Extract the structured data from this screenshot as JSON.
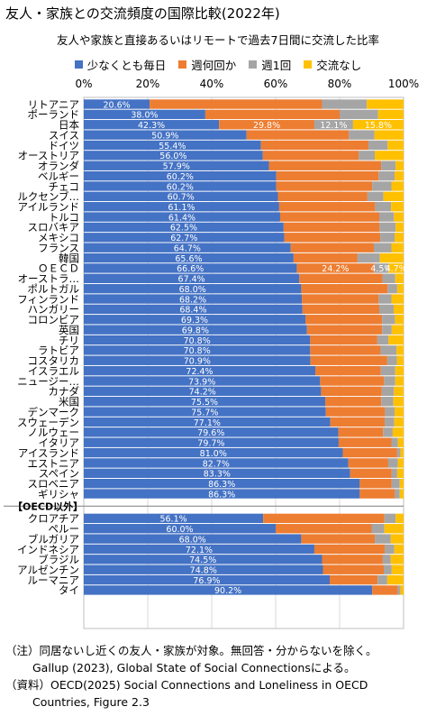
{
  "header": {
    "title": "友人・家族との交流頻度の国際比較(2022年)",
    "subtitle": "友人や家族と直接あるいはリモートで過去7日間に交流した比率"
  },
  "colors": {
    "daily": "#4472c4",
    "weekly": "#ed7d31",
    "once": "#a5a5a5",
    "none": "#ffc000",
    "gridline": "#d9d9d9"
  },
  "chart_data": {
    "type": "bar",
    "orientation": "horizontal",
    "stacked": true,
    "title": "友人・家族との交流頻度の国際比較(2022年)",
    "subtitle": "友人や家族と直接あるいはリモートで過去7日間に交流した比率",
    "xlim": [
      0,
      100
    ],
    "x_ticks": [
      "0%",
      "20%",
      "40%",
      "60%",
      "80%",
      "100%"
    ],
    "grid": true,
    "legend_position": "top",
    "series": [
      {
        "key": "daily",
        "name": "少なくとも毎日"
      },
      {
        "key": "weekly",
        "name": "週何回か"
      },
      {
        "key": "once",
        "name": "週1回"
      },
      {
        "key": "none",
        "name": "交流なし"
      }
    ],
    "section_label": "【OECD以外】",
    "rows": [
      {
        "label": "リトアニア",
        "values": [
          20.6,
          53.9,
          14.0,
          11.5
        ],
        "labels": [
          "20.6%"
        ]
      },
      {
        "label": "ポーランド",
        "values": [
          38.0,
          42.0,
          12.0,
          8.0
        ],
        "labels": [
          "38.0%"
        ]
      },
      {
        "label": "日本",
        "values": [
          42.3,
          29.8,
          12.1,
          15.8
        ],
        "labels": [
          "42.3%",
          "29.8%",
          "12.1%",
          "15.8%"
        ]
      },
      {
        "label": "スイス",
        "values": [
          50.9,
          32.0,
          8.0,
          9.1
        ],
        "labels": [
          "50.9%"
        ]
      },
      {
        "label": "ドイツ",
        "values": [
          55.4,
          33.6,
          6.0,
          5.0
        ],
        "labels": [
          "55.4%"
        ]
      },
      {
        "label": "オーストリア",
        "values": [
          56.0,
          30.0,
          5.0,
          9.0
        ],
        "labels": [
          "56.0%"
        ]
      },
      {
        "label": "オランダ",
        "values": [
          57.9,
          35.1,
          4.5,
          2.5
        ],
        "labels": [
          "57.9%"
        ]
      },
      {
        "label": "ベルギー",
        "values": [
          60.2,
          32.0,
          5.0,
          2.8
        ],
        "labels": [
          "60.2%"
        ]
      },
      {
        "label": "チェコ",
        "values": [
          60.2,
          30.0,
          6.0,
          3.8
        ],
        "labels": [
          "60.2%"
        ]
      },
      {
        "label": "ルクセンブ…",
        "values": [
          60.7,
          28.0,
          5.0,
          6.3
        ],
        "labels": [
          "60.7%"
        ]
      },
      {
        "label": "アイルランド",
        "values": [
          61.1,
          30.0,
          5.0,
          3.9
        ],
        "labels": [
          "61.1%"
        ]
      },
      {
        "label": "トルコ",
        "values": [
          61.4,
          31.0,
          4.6,
          3.0
        ],
        "labels": [
          "61.4%"
        ]
      },
      {
        "label": "スロバキア",
        "values": [
          62.5,
          30.0,
          5.0,
          2.5
        ],
        "labels": [
          "62.5%"
        ]
      },
      {
        "label": "メキシコ",
        "values": [
          62.7,
          30.0,
          4.5,
          2.8
        ],
        "labels": [
          "62.7%"
        ]
      },
      {
        "label": "フランス",
        "values": [
          64.7,
          26.0,
          5.5,
          3.8
        ],
        "labels": [
          "64.7%"
        ]
      },
      {
        "label": "韓国",
        "values": [
          65.6,
          20.0,
          7.0,
          7.4
        ],
        "labels": [
          "65.6%"
        ]
      },
      {
        "label": "ＯＥＣＤ",
        "values": [
          66.6,
          24.2,
          4.5,
          4.7
        ],
        "labels": [
          "66.6%",
          "24.2%",
          "4.5%",
          "4.7%"
        ]
      },
      {
        "label": "オーストラ…",
        "values": [
          67.4,
          26.0,
          4.0,
          2.6
        ],
        "labels": [
          "67.4%"
        ]
      },
      {
        "label": "ポルトガル",
        "values": [
          68.0,
          27.0,
          3.0,
          2.0
        ],
        "labels": [
          "68.0%"
        ]
      },
      {
        "label": "フィンランド",
        "values": [
          68.2,
          24.0,
          4.0,
          3.8
        ],
        "labels": [
          "68.2%"
        ]
      },
      {
        "label": "ハンガリー",
        "values": [
          68.4,
          24.0,
          4.5,
          3.1
        ],
        "labels": [
          "68.4%"
        ]
      },
      {
        "label": "コロンビア",
        "values": [
          69.3,
          24.0,
          4.0,
          2.7
        ],
        "labels": [
          "69.3%"
        ]
      },
      {
        "label": "英国",
        "values": [
          69.8,
          23.5,
          3.0,
          3.7
        ],
        "labels": [
          "69.8%"
        ]
      },
      {
        "label": "チリ",
        "values": [
          70.8,
          21.0,
          3.5,
          4.7
        ],
        "labels": [
          "70.8%"
        ]
      },
      {
        "label": "ラトビア",
        "values": [
          70.8,
          22.0,
          5.0,
          2.2
        ],
        "labels": [
          "70.8%"
        ]
      },
      {
        "label": "コスタリカ",
        "values": [
          70.9,
          24.0,
          3.0,
          2.1
        ],
        "labels": [
          "70.9%"
        ]
      },
      {
        "label": "イスラエル",
        "values": [
          72.4,
          20.5,
          4.5,
          2.6
        ],
        "labels": [
          "72.4%"
        ]
      },
      {
        "label": "ニュージー…",
        "values": [
          73.9,
          20.0,
          3.5,
          2.6
        ],
        "labels": [
          "73.9%"
        ]
      },
      {
        "label": "カナダ",
        "values": [
          74.2,
          19.0,
          3.8,
          3.0
        ],
        "labels": [
          "74.2%"
        ]
      },
      {
        "label": "米国",
        "values": [
          75.5,
          17.5,
          3.8,
          3.2
        ],
        "labels": [
          "75.5%"
        ]
      },
      {
        "label": "デンマーク",
        "values": [
          75.7,
          18.5,
          3.0,
          2.8
        ],
        "labels": [
          "75.7%"
        ]
      },
      {
        "label": "スウェーデン",
        "values": [
          77.1,
          17.0,
          3.0,
          2.9
        ],
        "labels": [
          "77.1%"
        ]
      },
      {
        "label": "ノルウェー",
        "values": [
          79.6,
          14.0,
          3.0,
          3.4
        ],
        "labels": [
          "79.6%"
        ]
      },
      {
        "label": "イタリア",
        "values": [
          79.7,
          16.5,
          2.0,
          1.8
        ],
        "labels": [
          "79.7%"
        ]
      },
      {
        "label": "アイスランド",
        "values": [
          81.0,
          17.0,
          1.0,
          1.0
        ],
        "labels": [
          "81.0%"
        ]
      },
      {
        "label": "エストニア",
        "values": [
          82.7,
          12.5,
          3.0,
          1.8
        ],
        "labels": [
          "82.7%"
        ]
      },
      {
        "label": "スペイン",
        "values": [
          83.3,
          13.0,
          1.7,
          2.0
        ],
        "labels": [
          "83.3%"
        ]
      },
      {
        "label": "スロベニア",
        "values": [
          86.3,
          10.0,
          2.5,
          1.2
        ],
        "labels": [
          "86.3%"
        ]
      },
      {
        "label": "ギリシャ",
        "values": [
          86.3,
          11.0,
          1.5,
          1.2
        ],
        "labels": [
          "86.3%"
        ]
      },
      {
        "label": "クロアチア",
        "values": [
          56.1,
          37.9,
          3.5,
          2.5
        ],
        "labels": [
          "56.1%"
        ],
        "group": "non_oecd"
      },
      {
        "label": "ペルー",
        "values": [
          60.0,
          30.0,
          4.0,
          6.0
        ],
        "labels": [
          "60.0%"
        ],
        "group": "non_oecd"
      },
      {
        "label": "ブルガリア",
        "values": [
          68.0,
          23.0,
          5.0,
          4.0
        ],
        "labels": [
          "68.0%"
        ],
        "group": "non_oecd"
      },
      {
        "label": "インドネシア",
        "values": [
          72.1,
          22.0,
          3.0,
          2.9
        ],
        "labels": [
          "72.1%"
        ],
        "group": "non_oecd"
      },
      {
        "label": "ブラジル",
        "values": [
          74.5,
          19.0,
          2.5,
          4.0
        ],
        "labels": [
          "74.5%"
        ],
        "group": "non_oecd"
      },
      {
        "label": "アルゼンチン",
        "values": [
          74.8,
          19.0,
          2.5,
          3.7
        ],
        "labels": [
          "74.8%"
        ],
        "group": "non_oecd"
      },
      {
        "label": "ルーマニア",
        "values": [
          76.9,
          15.0,
          3.0,
          5.1
        ],
        "labels": [
          "76.9%"
        ],
        "group": "non_oecd"
      },
      {
        "label": "タイ",
        "values": [
          90.2,
          8.0,
          0.8,
          1.0
        ],
        "labels": [
          "90.2%"
        ],
        "group": "non_oecd"
      }
    ]
  },
  "footnotes": {
    "note_1": "（注）同居ないし近くの友人・家族が対象。無回答・分からないを除く。",
    "note_2": "Gallup (2023), Global State of Social Connectionsによる。",
    "source_1": "（資料）OECD(2025) Social Connections and Loneliness in OECD",
    "source_2": "Countries, Figure 2.3"
  }
}
